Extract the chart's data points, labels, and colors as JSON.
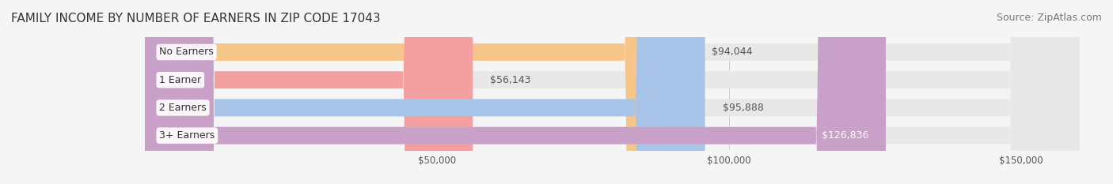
{
  "title": "FAMILY INCOME BY NUMBER OF EARNERS IN ZIP CODE 17043",
  "source": "Source: ZipAtlas.com",
  "categories": [
    "No Earners",
    "1 Earner",
    "2 Earners",
    "3+ Earners"
  ],
  "values": [
    94044,
    56143,
    95888,
    126836
  ],
  "bar_colors": [
    "#F5C589",
    "#F5A0A0",
    "#A8C4E8",
    "#C9A0C8"
  ],
  "label_colors": [
    "#555555",
    "#555555",
    "#555555",
    "#ffffff"
  ],
  "value_labels": [
    "$94,044",
    "$56,143",
    "$95,888",
    "$126,836"
  ],
  "xlim": [
    0,
    160000
  ],
  "xticks": [
    50000,
    100000,
    150000
  ],
  "xtick_labels": [
    "$50,000",
    "$100,000",
    "$150,000"
  ],
  "background_color": "#f5f5f5",
  "bar_background_color": "#e8e8e8",
  "title_fontsize": 11,
  "source_fontsize": 9,
  "label_fontsize": 9,
  "value_fontsize": 9
}
